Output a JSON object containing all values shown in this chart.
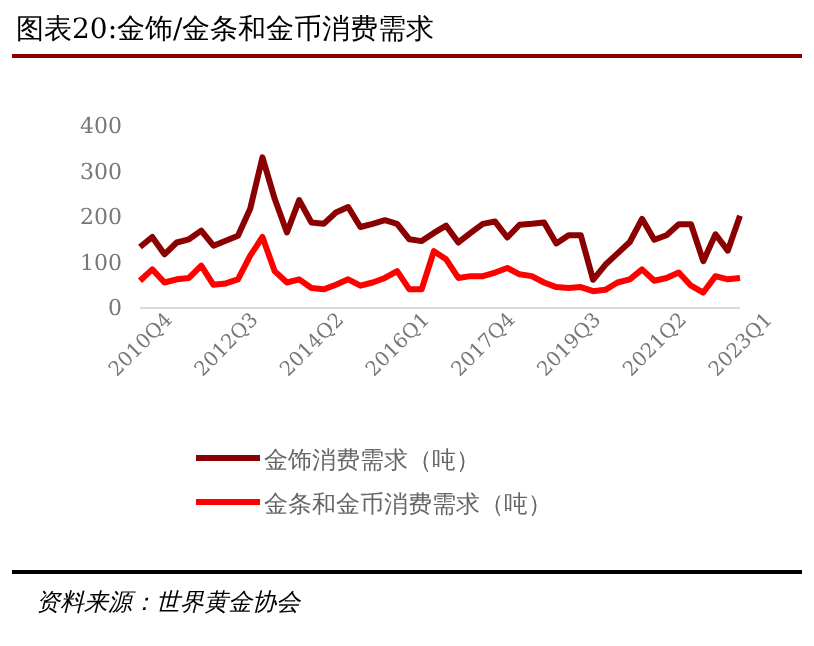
{
  "chart_data": {
    "type": "line",
    "title": "图表20:金饰/金条和金币消费需求",
    "categories": [
      "2010Q4",
      null,
      null,
      null,
      null,
      null,
      null,
      "2012Q3",
      null,
      null,
      null,
      null,
      null,
      null,
      "2014Q2",
      null,
      null,
      null,
      null,
      null,
      null,
      "2016Q1",
      null,
      null,
      null,
      null,
      null,
      null,
      "2017Q4",
      null,
      null,
      null,
      null,
      null,
      null,
      "2019Q3",
      null,
      null,
      null,
      null,
      null,
      null,
      "2021Q2",
      null,
      null,
      null,
      null,
      null,
      null,
      "2023Q1"
    ],
    "series": [
      {
        "name": "金饰消费需求（吨）",
        "color": "#8b0000",
        "values": [
          134,
          156,
          118,
          144,
          151,
          170,
          137,
          148,
          159,
          218,
          331,
          240,
          166,
          237,
          188,
          185,
          210,
          222,
          178,
          185,
          193,
          185,
          151,
          147,
          165,
          181,
          144,
          165,
          185,
          190,
          155,
          183,
          185,
          188,
          142,
          160,
          160,
          62,
          95,
          120,
          145,
          196,
          150,
          160,
          184,
          184,
          103,
          162,
          126,
          203
        ]
      },
      {
        "name": "金条和金币消费需求（吨）",
        "color": "#ff0000",
        "values": [
          60,
          85,
          56,
          63,
          66,
          93,
          51,
          54,
          63,
          115,
          156,
          81,
          56,
          63,
          44,
          41,
          51,
          63,
          49,
          56,
          66,
          81,
          41,
          41,
          125,
          107,
          66,
          70,
          70,
          78,
          88,
          74,
          70,
          56,
          46,
          44,
          46,
          37,
          40,
          56,
          63,
          85,
          60,
          66,
          78,
          49,
          34,
          70,
          63,
          66
        ]
      }
    ],
    "ylim": [
      0,
      400
    ],
    "yticks": [
      0,
      100,
      200,
      300,
      400
    ],
    "grid": false,
    "legend": "bottom",
    "line_style": "solid",
    "marker": "none",
    "annotations": [
      "资料来源：世界黄金协会"
    ]
  }
}
